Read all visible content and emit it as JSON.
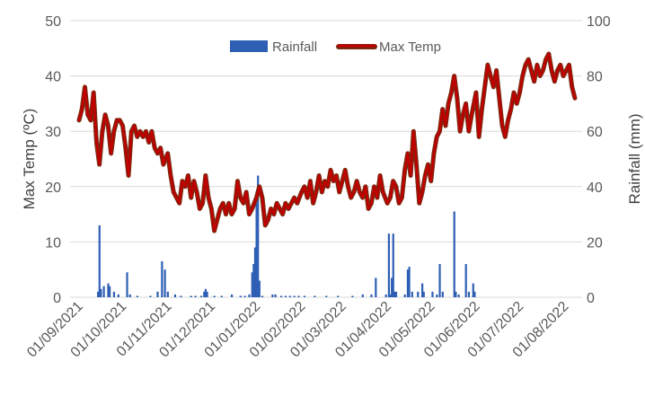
{
  "chart_data": {
    "type": "bar+line",
    "legend_position": "top-center",
    "grid": true,
    "colors": {
      "rainfall": "#2e5fb5",
      "max_temp": "#c00000",
      "max_temp_shadow": "#7a2a10"
    },
    "legend": [
      {
        "key": "rainfall",
        "label": "Rainfall"
      },
      {
        "key": "max_temp",
        "label": "Max Temp"
      }
    ],
    "y_left": {
      "label": "Max Temp (ºC)",
      "range": [
        0,
        50
      ],
      "ticks": [
        "0",
        "10",
        "20",
        "30",
        "40",
        "50"
      ]
    },
    "y_right": {
      "label": "Rainfall (mm)",
      "range": [
        0,
        100
      ],
      "ticks": [
        "0",
        "20",
        "40",
        "60",
        "80",
        "100"
      ]
    },
    "x": {
      "start": "2021-09-01",
      "end": "2022-08-08",
      "tick_dates": [
        "2021-09-01",
        "2021-10-01",
        "2021-11-01",
        "2021-12-01",
        "2022-01-01",
        "2022-02-01",
        "2022-03-01",
        "2022-04-01",
        "2022-05-01",
        "2022-06-01",
        "2022-07-01",
        "2022-08-01"
      ],
      "tick_labels": [
        "01/09/2021",
        "01/10/2021",
        "01/11/2021",
        "01/12/2021",
        "01/01/2022",
        "01/02/2022",
        "01/03/2022",
        "01/04/2022",
        "01/05/2022",
        "01/06/2022",
        "01/07/2022",
        "01/08/2022"
      ]
    },
    "series": [
      {
        "name": "Max Temp",
        "axis": "left",
        "points": [
          [
            "2021-09-01",
            32
          ],
          [
            "2021-09-03",
            34
          ],
          [
            "2021-09-05",
            38
          ],
          [
            "2021-09-07",
            33
          ],
          [
            "2021-09-09",
            32
          ],
          [
            "2021-09-11",
            37
          ],
          [
            "2021-09-13",
            28
          ],
          [
            "2021-09-15",
            24
          ],
          [
            "2021-09-17",
            30
          ],
          [
            "2021-09-19",
            33
          ],
          [
            "2021-09-21",
            31
          ],
          [
            "2021-09-23",
            26
          ],
          [
            "2021-09-25",
            30
          ],
          [
            "2021-09-27",
            32
          ],
          [
            "2021-09-29",
            32
          ],
          [
            "2021-10-01",
            31
          ],
          [
            "2021-10-03",
            27
          ],
          [
            "2021-10-05",
            22
          ],
          [
            "2021-10-07",
            30
          ],
          [
            "2021-10-09",
            31
          ],
          [
            "2021-10-11",
            29
          ],
          [
            "2021-10-13",
            30
          ],
          [
            "2021-10-15",
            29
          ],
          [
            "2021-10-17",
            30
          ],
          [
            "2021-10-19",
            28
          ],
          [
            "2021-10-21",
            30
          ],
          [
            "2021-10-23",
            27
          ],
          [
            "2021-10-25",
            26
          ],
          [
            "2021-10-27",
            27
          ],
          [
            "2021-10-29",
            24
          ],
          [
            "2021-11-01",
            26
          ],
          [
            "2021-11-03",
            22
          ],
          [
            "2021-11-05",
            19
          ],
          [
            "2021-11-07",
            18
          ],
          [
            "2021-11-09",
            17
          ],
          [
            "2021-11-11",
            21
          ],
          [
            "2021-11-13",
            20
          ],
          [
            "2021-11-15",
            22
          ],
          [
            "2021-11-17",
            18
          ],
          [
            "2021-11-19",
            21
          ],
          [
            "2021-11-21",
            19
          ],
          [
            "2021-11-23",
            16
          ],
          [
            "2021-11-25",
            17
          ],
          [
            "2021-11-27",
            22
          ],
          [
            "2021-11-29",
            18
          ],
          [
            "2021-12-01",
            16
          ],
          [
            "2021-12-03",
            12
          ],
          [
            "2021-12-05",
            14
          ],
          [
            "2021-12-07",
            16
          ],
          [
            "2021-12-09",
            17
          ],
          [
            "2021-12-11",
            15
          ],
          [
            "2021-12-13",
            17
          ],
          [
            "2021-12-15",
            15
          ],
          [
            "2021-12-17",
            16
          ],
          [
            "2021-12-19",
            21
          ],
          [
            "2021-12-21",
            18
          ],
          [
            "2021-12-23",
            17
          ],
          [
            "2021-12-25",
            19
          ],
          [
            "2021-12-27",
            15
          ],
          [
            "2021-12-29",
            16
          ],
          [
            "2022-01-01",
            18
          ],
          [
            "2022-01-03",
            20
          ],
          [
            "2022-01-05",
            18
          ],
          [
            "2022-01-07",
            13
          ],
          [
            "2022-01-09",
            14
          ],
          [
            "2022-01-11",
            16
          ],
          [
            "2022-01-13",
            15
          ],
          [
            "2022-01-15",
            17
          ],
          [
            "2022-01-17",
            16
          ],
          [
            "2022-01-19",
            15
          ],
          [
            "2022-01-21",
            17
          ],
          [
            "2022-01-23",
            16
          ],
          [
            "2022-01-25",
            17
          ],
          [
            "2022-01-27",
            18
          ],
          [
            "2022-01-29",
            17
          ],
          [
            "2022-02-01",
            19
          ],
          [
            "2022-02-03",
            20
          ],
          [
            "2022-02-05",
            18
          ],
          [
            "2022-02-07",
            21
          ],
          [
            "2022-02-09",
            17
          ],
          [
            "2022-02-11",
            19
          ],
          [
            "2022-02-13",
            22
          ],
          [
            "2022-02-15",
            19
          ],
          [
            "2022-02-17",
            21
          ],
          [
            "2022-02-19",
            20
          ],
          [
            "2022-02-21",
            23
          ],
          [
            "2022-02-23",
            21
          ],
          [
            "2022-02-25",
            22
          ],
          [
            "2022-02-27",
            19
          ],
          [
            "2022-03-01",
            21
          ],
          [
            "2022-03-03",
            23
          ],
          [
            "2022-03-05",
            20
          ],
          [
            "2022-03-07",
            18
          ],
          [
            "2022-03-09",
            19
          ],
          [
            "2022-03-11",
            21
          ],
          [
            "2022-03-13",
            19
          ],
          [
            "2022-03-15",
            18
          ],
          [
            "2022-03-17",
            20
          ],
          [
            "2022-03-19",
            16
          ],
          [
            "2022-03-21",
            17
          ],
          [
            "2022-03-23",
            20
          ],
          [
            "2022-03-25",
            18
          ],
          [
            "2022-03-27",
            22
          ],
          [
            "2022-03-29",
            19
          ],
          [
            "2022-04-01",
            17
          ],
          [
            "2022-04-03",
            18
          ],
          [
            "2022-04-05",
            21
          ],
          [
            "2022-04-07",
            20
          ],
          [
            "2022-04-09",
            17
          ],
          [
            "2022-04-11",
            18
          ],
          [
            "2022-04-13",
            23
          ],
          [
            "2022-04-15",
            26
          ],
          [
            "2022-04-17",
            22
          ],
          [
            "2022-04-19",
            30
          ],
          [
            "2022-04-21",
            24
          ],
          [
            "2022-04-23",
            17
          ],
          [
            "2022-04-25",
            19
          ],
          [
            "2022-04-27",
            22
          ],
          [
            "2022-04-29",
            24
          ],
          [
            "2022-05-01",
            21
          ],
          [
            "2022-05-03",
            26
          ],
          [
            "2022-05-05",
            29
          ],
          [
            "2022-05-07",
            30
          ],
          [
            "2022-05-09",
            34
          ],
          [
            "2022-05-11",
            31
          ],
          [
            "2022-05-13",
            35
          ],
          [
            "2022-05-15",
            37
          ],
          [
            "2022-05-17",
            40
          ],
          [
            "2022-05-19",
            36
          ],
          [
            "2022-05-21",
            30
          ],
          [
            "2022-05-23",
            33
          ],
          [
            "2022-05-25",
            35
          ],
          [
            "2022-05-27",
            30
          ],
          [
            "2022-05-29",
            33
          ],
          [
            "2022-06-01",
            37
          ],
          [
            "2022-06-03",
            29
          ],
          [
            "2022-06-05",
            34
          ],
          [
            "2022-06-07",
            38
          ],
          [
            "2022-06-09",
            42
          ],
          [
            "2022-06-11",
            40
          ],
          [
            "2022-06-13",
            38
          ],
          [
            "2022-06-15",
            41
          ],
          [
            "2022-06-17",
            36
          ],
          [
            "2022-06-19",
            31
          ],
          [
            "2022-06-21",
            29
          ],
          [
            "2022-06-23",
            32
          ],
          [
            "2022-06-25",
            34
          ],
          [
            "2022-06-27",
            37
          ],
          [
            "2022-06-29",
            35
          ],
          [
            "2022-07-01",
            37
          ],
          [
            "2022-07-03",
            40
          ],
          [
            "2022-07-05",
            42
          ],
          [
            "2022-07-07",
            43
          ],
          [
            "2022-07-09",
            41
          ],
          [
            "2022-07-11",
            39
          ],
          [
            "2022-07-13",
            42
          ],
          [
            "2022-07-15",
            40
          ],
          [
            "2022-07-17",
            41
          ],
          [
            "2022-07-19",
            43
          ],
          [
            "2022-07-21",
            44
          ],
          [
            "2022-07-23",
            41
          ],
          [
            "2022-07-25",
            39
          ],
          [
            "2022-07-27",
            41
          ],
          [
            "2022-07-29",
            42
          ],
          [
            "2022-07-31",
            40
          ],
          [
            "2022-08-02",
            41
          ],
          [
            "2022-08-04",
            42
          ],
          [
            "2022-08-06",
            38
          ],
          [
            "2022-08-08",
            36
          ]
        ]
      },
      {
        "name": "Rainfall",
        "axis": "right",
        "points": [
          [
            "2021-09-14",
            2
          ],
          [
            "2021-09-15",
            26
          ],
          [
            "2021-09-16",
            3
          ],
          [
            "2021-09-18",
            4
          ],
          [
            "2021-09-21",
            5
          ],
          [
            "2021-09-22",
            4
          ],
          [
            "2021-09-25",
            2
          ],
          [
            "2021-09-28",
            1
          ],
          [
            "2021-10-04",
            9
          ],
          [
            "2021-10-06",
            1
          ],
          [
            "2021-10-11",
            0.5
          ],
          [
            "2021-10-20",
            0.5
          ],
          [
            "2021-10-25",
            2
          ],
          [
            "2021-10-28",
            13
          ],
          [
            "2021-10-30",
            10
          ],
          [
            "2021-11-01",
            2
          ],
          [
            "2021-11-06",
            1
          ],
          [
            "2021-11-10",
            0.5
          ],
          [
            "2021-11-17",
            0.5
          ],
          [
            "2021-11-20",
            0.5
          ],
          [
            "2021-11-24",
            0.5
          ],
          [
            "2021-11-26",
            2
          ],
          [
            "2021-11-27",
            3
          ],
          [
            "2021-11-28",
            2
          ],
          [
            "2021-12-03",
            0.5
          ],
          [
            "2021-12-08",
            0.5
          ],
          [
            "2021-12-15",
            1
          ],
          [
            "2021-12-21",
            0.5
          ],
          [
            "2021-12-24",
            0.5
          ],
          [
            "2021-12-27",
            1
          ],
          [
            "2021-12-29",
            9
          ],
          [
            "2021-12-30",
            12
          ],
          [
            "2021-12-31",
            18
          ],
          [
            "2022-01-01",
            34
          ],
          [
            "2022-01-02",
            44
          ],
          [
            "2022-01-03",
            6
          ],
          [
            "2022-01-05",
            0.5
          ],
          [
            "2022-01-12",
            1
          ],
          [
            "2022-01-14",
            1
          ],
          [
            "2022-01-18",
            0.5
          ],
          [
            "2022-01-21",
            0.5
          ],
          [
            "2022-01-24",
            0.5
          ],
          [
            "2022-01-27",
            0.5
          ],
          [
            "2022-01-30",
            0.5
          ],
          [
            "2022-02-03",
            0.5
          ],
          [
            "2022-02-10",
            0.5
          ],
          [
            "2022-02-18",
            0.5
          ],
          [
            "2022-02-26",
            0.5
          ],
          [
            "2022-03-08",
            0.5
          ],
          [
            "2022-03-15",
            1
          ],
          [
            "2022-03-21",
            1
          ],
          [
            "2022-03-24",
            7
          ],
          [
            "2022-03-31",
            1
          ],
          [
            "2022-04-02",
            23
          ],
          [
            "2022-04-03",
            1
          ],
          [
            "2022-04-04",
            7
          ],
          [
            "2022-04-05",
            23
          ],
          [
            "2022-04-06",
            2
          ],
          [
            "2022-04-07",
            2
          ],
          [
            "2022-04-13",
            1
          ],
          [
            "2022-04-15",
            10
          ],
          [
            "2022-04-16",
            11
          ],
          [
            "2022-04-18",
            2
          ],
          [
            "2022-04-22",
            2
          ],
          [
            "2022-04-25",
            5
          ],
          [
            "2022-04-26",
            2
          ],
          [
            "2022-05-02",
            2
          ],
          [
            "2022-05-05",
            1
          ],
          [
            "2022-05-07",
            12
          ],
          [
            "2022-05-09",
            2
          ],
          [
            "2022-05-17",
            31
          ],
          [
            "2022-05-18",
            2
          ],
          [
            "2022-05-20",
            1
          ],
          [
            "2022-05-25",
            12
          ],
          [
            "2022-05-27",
            2
          ],
          [
            "2022-05-30",
            5
          ],
          [
            "2022-05-31",
            2
          ]
        ]
      }
    ]
  }
}
